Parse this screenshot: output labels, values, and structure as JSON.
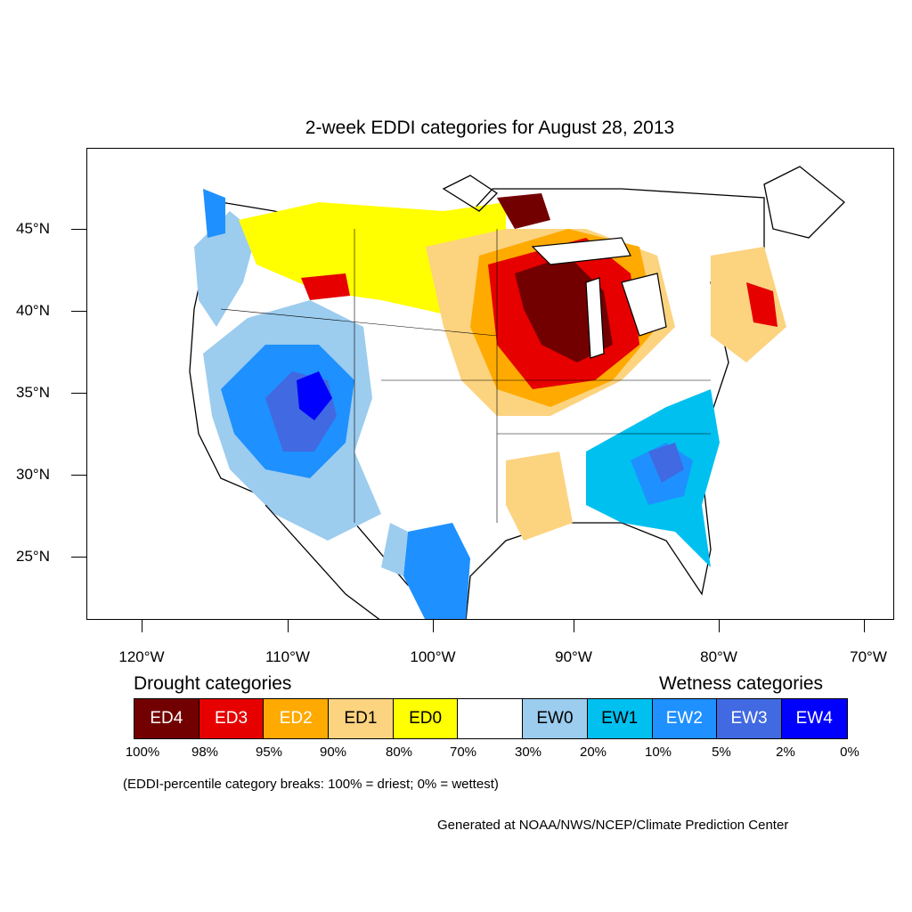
{
  "map": {
    "title": "2-week EDDI categories for August 28, 2013",
    "lat_labels": [
      "45°N",
      "40°N",
      "35°N",
      "30°N",
      "25°N"
    ],
    "lon_labels": [
      "120°W",
      "110°W",
      "100°W",
      "90°W",
      "80°W",
      "70°W"
    ]
  },
  "legend": {
    "drought_heading": "Drought categories",
    "wetness_heading": "Wetness categories",
    "categories": [
      {
        "label": "ED4",
        "color": "#730000",
        "text_color": "#ffffff"
      },
      {
        "label": "ED3",
        "color": "#e60000",
        "text_color": "#ffffff"
      },
      {
        "label": "ED2",
        "color": "#ffaa00",
        "text_color": "#ffffff"
      },
      {
        "label": "ED1",
        "color": "#fcd37f",
        "text_color": "#000000"
      },
      {
        "label": "ED0",
        "color": "#ffff00",
        "text_color": "#000000"
      },
      {
        "label": "",
        "color": "#ffffff",
        "text_color": "#000000"
      },
      {
        "label": "EW0",
        "color": "#9cccee",
        "text_color": "#000000"
      },
      {
        "label": "EW1",
        "color": "#00c0f0",
        "text_color": "#000000"
      },
      {
        "label": "EW2",
        "color": "#1e90ff",
        "text_color": "#ffffff"
      },
      {
        "label": "EW3",
        "color": "#4169e1",
        "text_color": "#ffffff"
      },
      {
        "label": "EW4",
        "color": "#0000ff",
        "text_color": "#ffffff"
      }
    ],
    "breaks": [
      "100%",
      "98%",
      "95%",
      "90%",
      "80%",
      "70%",
      "30%",
      "20%",
      "10%",
      "5%",
      "2%",
      "0%"
    ],
    "note": "(EDDI-percentile category breaks: 100% = driest; 0% = wettest)"
  },
  "credit": "Generated at NOAA/NWS/NCEP/Climate Prediction Center"
}
